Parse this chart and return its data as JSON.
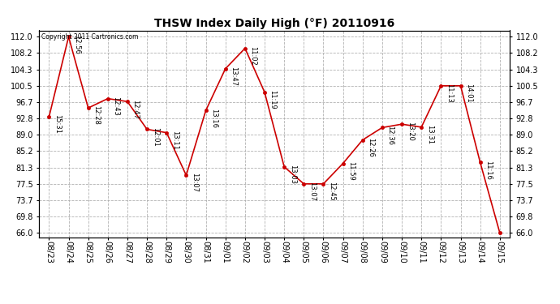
{
  "title": "THSW Index Daily High (°F) 20110916",
  "copyright": "Copyright 2011 Cartronics.com",
  "dates": [
    "08/23",
    "08/24",
    "08/25",
    "08/26",
    "08/27",
    "08/28",
    "08/29",
    "08/30",
    "08/31",
    "09/01",
    "09/02",
    "09/03",
    "09/04",
    "09/05",
    "09/06",
    "09/07",
    "09/08",
    "09/09",
    "09/10",
    "09/11",
    "09/12",
    "09/13",
    "09/14",
    "09/15"
  ],
  "values": [
    93.2,
    112.0,
    95.3,
    97.5,
    96.8,
    90.3,
    89.5,
    79.5,
    94.7,
    104.5,
    109.3,
    99.0,
    81.5,
    77.5,
    77.5,
    82.3,
    87.8,
    90.7,
    91.5,
    90.8,
    100.5,
    100.5,
    82.5,
    66.0
  ],
  "time_labels": [
    "15:31",
    "12:56",
    "12:28",
    "12:43",
    "12:47",
    "12:01",
    "13:11",
    "13:07",
    "13:16",
    "13:47",
    "11:02",
    "11:19",
    "13:03",
    "13:07",
    "12:45",
    "11:59",
    "12:26",
    "12:36",
    "13:20",
    "13:31",
    "11:13",
    "14:01",
    "11:16",
    ""
  ],
  "yticks": [
    66.0,
    69.8,
    73.7,
    77.5,
    81.3,
    85.2,
    89.0,
    92.8,
    96.7,
    100.5,
    104.3,
    108.2,
    112.0
  ],
  "ylim": [
    65.0,
    113.5
  ],
  "line_color": "#cc0000",
  "bg_color": "#ffffff",
  "grid_color": "#aaaaaa",
  "title_fontsize": 10,
  "tick_fontsize": 7,
  "label_fontsize": 6
}
